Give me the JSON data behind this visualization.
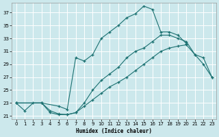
{
  "bg_color": "#cce8ec",
  "grid_color": "#ffffff",
  "line_color": "#1a7070",
  "xlabel": "Humidex (Indice chaleur)",
  "xlim": [
    -0.5,
    23.5
  ],
  "ylim": [
    20.5,
    38.5
  ],
  "xticks": [
    0,
    1,
    2,
    3,
    4,
    5,
    6,
    7,
    8,
    9,
    10,
    11,
    12,
    13,
    14,
    15,
    16,
    17,
    18,
    19,
    20,
    21,
    22,
    23
  ],
  "yticks": [
    21,
    23,
    25,
    27,
    29,
    31,
    33,
    35,
    37
  ],
  "line1_x": [
    0,
    1,
    2,
    3,
    4,
    5,
    6,
    7,
    8,
    9,
    10,
    11,
    12,
    13,
    14,
    15,
    16,
    17,
    18,
    19,
    20,
    21,
    22,
    23
  ],
  "line1_y": [
    23.0,
    21.8,
    23.0,
    23.0,
    21.8,
    21.3,
    21.2,
    21.5,
    22.5,
    23.5,
    24.5,
    25.5,
    26.2,
    27.0,
    28.0,
    29.0,
    30.0,
    31.0,
    31.5,
    31.8,
    32.0,
    30.5,
    29.0,
    27.0
  ],
  "line2_x": [
    0,
    3,
    4,
    5,
    6,
    7,
    8,
    9,
    10,
    11,
    12,
    13,
    14,
    15,
    16,
    17,
    18,
    19,
    20,
    21,
    22,
    23
  ],
  "line2_y": [
    23.0,
    23.0,
    21.5,
    21.2,
    21.2,
    21.5,
    23.0,
    25.0,
    26.5,
    27.5,
    28.5,
    30.0,
    31.0,
    31.5,
    32.5,
    33.5,
    33.5,
    33.0,
    32.5,
    30.5,
    30.0,
    27.0
  ],
  "line3_x": [
    0,
    3,
    5,
    6,
    7,
    8,
    9,
    10,
    11,
    12,
    13,
    14,
    15,
    16,
    17,
    18,
    19,
    20
  ],
  "line3_y": [
    23.0,
    23.0,
    22.5,
    22.0,
    30.0,
    29.5,
    30.5,
    33.0,
    34.0,
    35.0,
    36.2,
    36.8,
    38.0,
    37.5,
    34.0,
    34.0,
    33.5,
    32.2
  ]
}
